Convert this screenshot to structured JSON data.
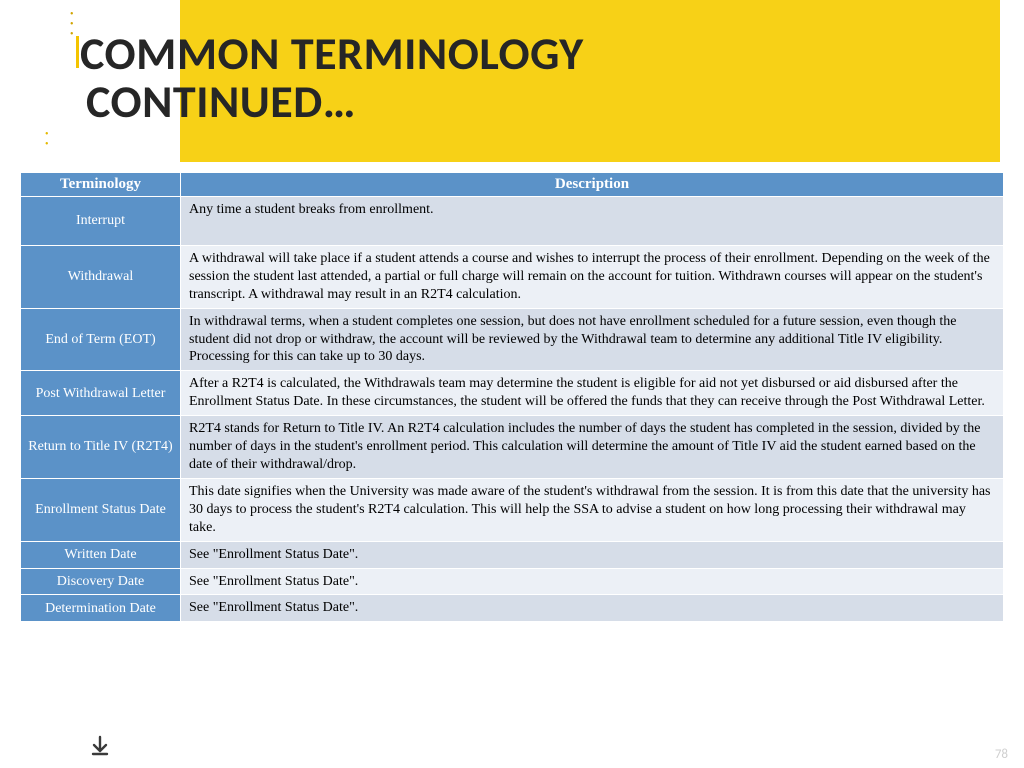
{
  "title": {
    "line1": "COMMON TERMINOLOGY",
    "line2": "CONTINUED…"
  },
  "columns": {
    "terminology": "Terminology",
    "description": "Description"
  },
  "rows": [
    {
      "term": "Interrupt",
      "desc": "Any time a student breaks from enrollment."
    },
    {
      "term": "Withdrawal",
      "desc": "A withdrawal will take place if a student attends a course and wishes to interrupt the process of their enrollment. Depending on the week of the session the student last attended, a partial or full charge will remain on the account for tuition. Withdrawn courses will appear on the student's transcript.  A withdrawal may result in an R2T4 calculation."
    },
    {
      "term": "End of Term (EOT)",
      "desc": "In withdrawal terms, when a student completes one session, but does not have enrollment scheduled for a future session, even though the student did not drop or withdraw, the account will be reviewed by the Withdrawal team to determine any additional Title IV eligibility.  Processing for this can take up to 30 days."
    },
    {
      "term": "Post Withdrawal Letter",
      "desc": "After a R2T4 is calculated, the Withdrawals team may determine the student is eligible for aid not yet disbursed or aid disbursed after the Enrollment Status Date. In these circumstances, the student will be offered the funds that they can receive through the Post Withdrawal Letter."
    },
    {
      "term": "Return to Title IV (R2T4)",
      "desc": "R2T4 stands for Return to Title IV.  An R2T4 calculation includes the number of days the student has completed in the session, divided by the number of days in the student's enrollment period.  This calculation will determine the amount of Title IV aid the student earned based on the date of their withdrawal/drop."
    },
    {
      "term": "Enrollment Status Date",
      "desc": "This date signifies when the University was made aware of the student's withdrawal from the session.  It is from this date that the university has 30 days to process the student's R2T4 calculation. This will help the SSA to advise a student on how long processing their withdrawal may take."
    },
    {
      "term": "Written Date",
      "desc": "See \"Enrollment Status Date\"."
    },
    {
      "term": "Discovery Date",
      "desc": "See \"Enrollment Status Date\"."
    },
    {
      "term": "Determination Date",
      "desc": "See \"Enrollment Status Date\"."
    }
  ],
  "colors": {
    "yellow": "#f7d117",
    "header_blue": "#5b92c8",
    "row_odd_bg": "#d6dde8",
    "row_even_bg": "#ecf0f6",
    "title_color": "#262626"
  },
  "page_number": "78"
}
